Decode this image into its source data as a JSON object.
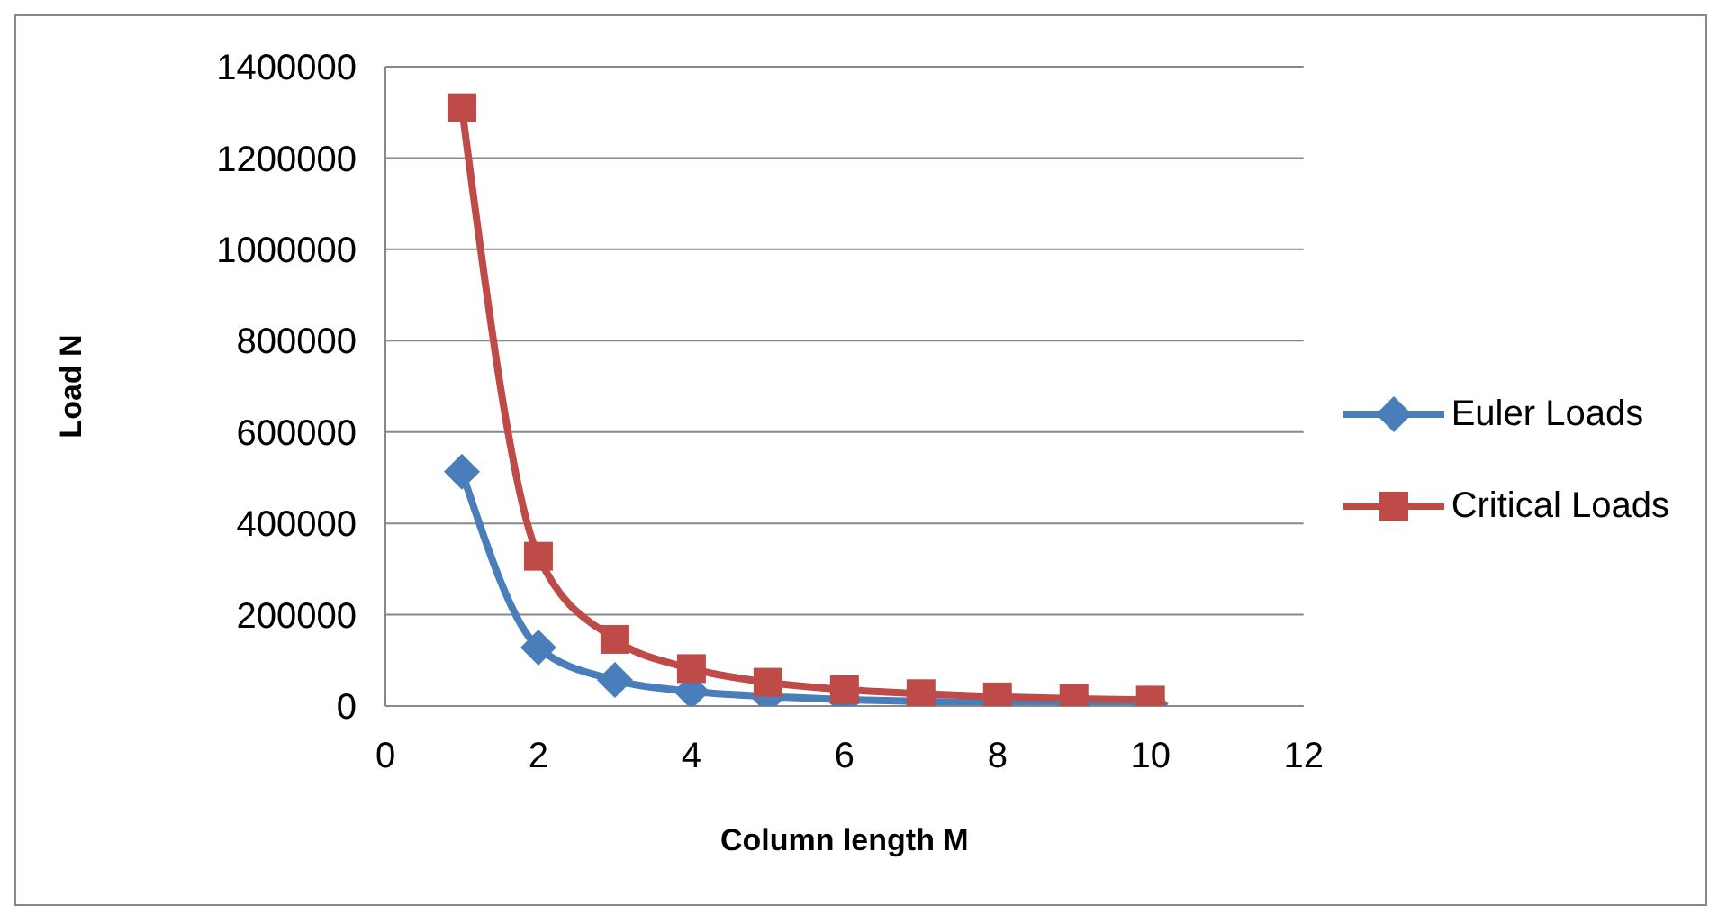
{
  "chart_data": {
    "type": "line",
    "xlabel": "Column length M",
    "ylabel": "Load N",
    "x": [
      1,
      2,
      3,
      4,
      5,
      6,
      7,
      8,
      9,
      10
    ],
    "series": [
      {
        "name": "Euler Loads",
        "color": "#4a7ebb",
        "marker": "diamond",
        "values": [
          513000,
          128000,
          57000,
          32000,
          21000,
          14000,
          10000,
          8000,
          6000,
          5000
        ]
      },
      {
        "name": "Critical Loads",
        "color": "#be4b48",
        "marker": "square",
        "values": [
          1310000,
          328000,
          146000,
          82000,
          52000,
          36000,
          27000,
          20000,
          16000,
          13000
        ]
      }
    ],
    "xlim": [
      0,
      12
    ],
    "xticks": [
      0,
      2,
      4,
      6,
      8,
      10,
      12
    ],
    "ylim": [
      0,
      1400000
    ],
    "yticks": [
      0,
      200000,
      400000,
      600000,
      800000,
      1000000,
      1200000,
      1400000
    ],
    "grid": "y",
    "legend": "right"
  }
}
